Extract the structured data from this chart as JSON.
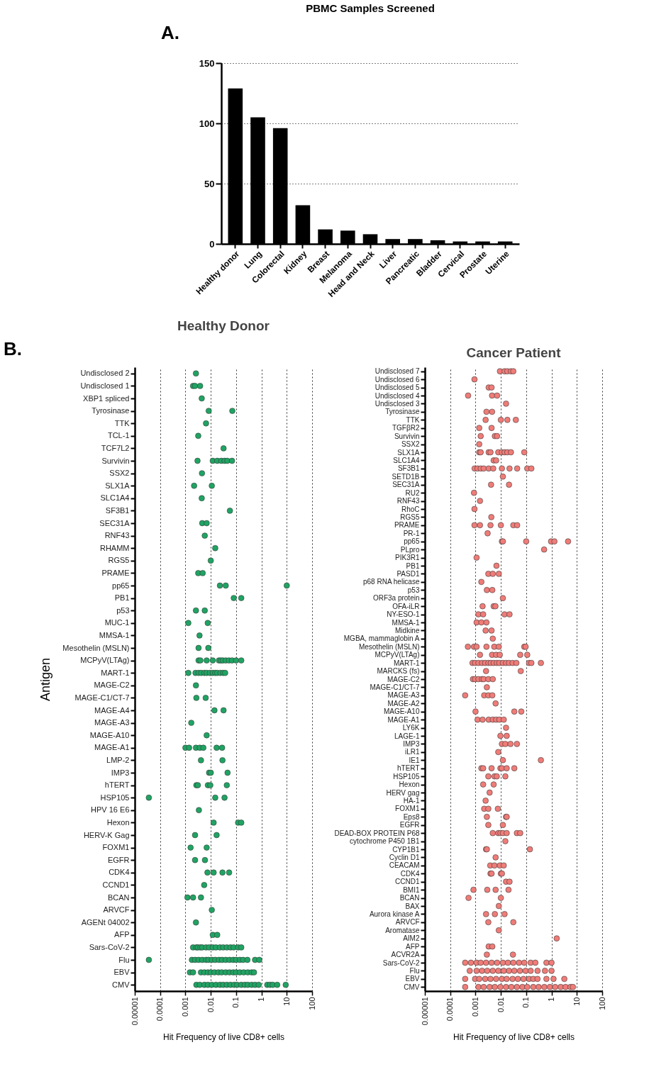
{
  "chart_data": [
    {
      "type": "bar",
      "title": "PBMC Samples Screened",
      "annotations": [
        "A."
      ],
      "categories": [
        "Healthy donor",
        "Lung",
        "Colorectal",
        "Kidney",
        "Breast",
        "Melanoma",
        "Head and Neck",
        "Liver",
        "Pancreatic",
        "Bladder",
        "Cervical",
        "Prostate",
        "Uterine"
      ],
      "values": [
        129,
        105,
        96,
        32,
        12,
        11,
        8,
        4,
        4,
        3,
        2,
        2,
        2
      ],
      "color": "#000000",
      "ylim": [
        0,
        150
      ],
      "yticks": [
        0,
        50,
        100,
        150
      ],
      "grid": "y"
    },
    {
      "type": "scatter",
      "orientation": "horizontal",
      "title": "Healthy Donor",
      "xlabel": "Hit Frequency of live CD8+ cells",
      "ylabel": "Antigen",
      "annotations": [
        "B."
      ],
      "categories": [
        "Undisclosed 2",
        "Undisclosed 1",
        "XBP1 spliced",
        "Tyrosinase",
        "TTK",
        "TCL-1",
        "TCF7L2",
        "Survivin",
        "SSX2",
        "SLX1A",
        "SLC1A4",
        "SF3B1",
        "SEC31A",
        "RNF43",
        "RHAMM",
        "RGS5",
        "PRAME",
        "pp65",
        "PB1",
        "p53",
        "MUC-1",
        "MMSA-1",
        "Mesothelin (MSLN)",
        "MCPyV(LTAg)",
        "MART-1",
        "MAGE-C2",
        "MAGE-C1/CT-7",
        "MAGE-A4",
        "MAGE-A3",
        "MAGE-A10",
        "MAGE-A1",
        "LMP-2",
        "IMP3",
        "hTERT",
        "HSP105",
        "HPV 16 E6",
        "Hexon",
        "HERV-K Gag",
        "FOXM1",
        "EGFR",
        "CDK4",
        "CCND1",
        "BCAN",
        "ARVCF",
        "AGENt 04002",
        "AFP",
        "Sars-CoV-2",
        "Flu",
        "EBV",
        "CMV"
      ],
      "log": "x",
      "xlim": [
        1e-05,
        100
      ],
      "xticks": [
        {
          "value": 1e-05,
          "label": "0.00001"
        },
        0.0001,
        0.001,
        0.01,
        0.1,
        1,
        10,
        100
      ],
      "grid": "x",
      "marker": "circle",
      "series": [
        {
          "color": "#1fa463",
          "x": [
            "Undisclosed 2",
            "Undisclosed 1",
            "Undisclosed 1",
            "Undisclosed 1",
            "XBP1 spliced",
            "Tyrosinase",
            "Tyrosinase",
            "TTK",
            "TCL-1",
            "TCF7L2",
            "Survivin",
            "Survivin",
            "Survivin",
            "Survivin",
            "Survivin",
            "Survivin",
            "Survivin",
            "SSX2",
            "SLX1A",
            "SLX1A",
            "SLC1A4",
            "SF3B1",
            "SEC31A",
            "SEC31A",
            "RNF43",
            "RHAMM",
            "RGS5",
            "PRAME",
            "PRAME",
            "pp65",
            "pp65",
            "pp65",
            "PB1",
            "PB1",
            "p53",
            "p53",
            "MUC-1",
            "MUC-1",
            "MMSA-1",
            "Mesothelin (MSLN)",
            "Mesothelin (MSLN)",
            "MCPyV(LTAg)",
            "MCPyV(LTAg)",
            "MCPyV(LTAg)",
            "MCPyV(LTAg)",
            "MCPyV(LTAg)",
            "MCPyV(LTAg)",
            "MCPyV(LTAg)",
            "MCPyV(LTAg)",
            "MCPyV(LTAg)",
            "MCPyV(LTAg)",
            "MCPyV(LTAg)",
            "MCPyV(LTAg)",
            "MART-1",
            "MART-1",
            "MART-1",
            "MART-1",
            "MART-1",
            "MART-1",
            "MART-1",
            "MART-1",
            "MART-1",
            "MART-1",
            "MART-1",
            "MART-1",
            "MART-1",
            "MAGE-C2",
            "MAGE-C1/CT-7",
            "MAGE-C1/CT-7",
            "MAGE-A4",
            "MAGE-A4",
            "MAGE-A3",
            "MAGE-A10",
            "MAGE-A1",
            "MAGE-A1",
            "MAGE-A1",
            "MAGE-A1",
            "MAGE-A1",
            "MAGE-A1",
            "MAGE-A1",
            "LMP-2",
            "LMP-2",
            "IMP3",
            "IMP3",
            "IMP3",
            "hTERT",
            "hTERT",
            "hTERT",
            "hTERT",
            "hTERT",
            "HSP105",
            "HSP105",
            "HSP105",
            "HPV 16 E6",
            "Hexon",
            "Hexon",
            "Hexon",
            "HERV-K Gag",
            "HERV-K Gag",
            "FOXM1",
            "FOXM1",
            "EGFR",
            "EGFR",
            "CDK4",
            "CDK4",
            "CDK4",
            "CDK4",
            "CCND1",
            "BCAN",
            "BCAN",
            "BCAN",
            "ARVCF",
            "AGENt 04002",
            "AFP",
            "AFP",
            "Sars-CoV-2",
            "Sars-CoV-2",
            "Sars-CoV-2",
            "Sars-CoV-2",
            "Sars-CoV-2",
            "Sars-CoV-2",
            "Sars-CoV-2",
            "Sars-CoV-2",
            "Sars-CoV-2",
            "Sars-CoV-2",
            "Sars-CoV-2",
            "Sars-CoV-2",
            "Sars-CoV-2",
            "Sars-CoV-2",
            "Sars-CoV-2",
            "Sars-CoV-2",
            "Flu",
            "Flu",
            "Flu",
            "Flu",
            "Flu",
            "Flu",
            "Flu",
            "Flu",
            "Flu",
            "Flu",
            "Flu",
            "Flu",
            "Flu",
            "Flu",
            "Flu",
            "Flu",
            "Flu",
            "Flu",
            "Flu",
            "Flu",
            "EBV",
            "EBV",
            "EBV",
            "EBV",
            "EBV",
            "EBV",
            "EBV",
            "EBV",
            "EBV",
            "EBV",
            "EBV",
            "EBV",
            "EBV",
            "EBV",
            "EBV",
            "EBV",
            "EBV",
            "EBV",
            "CMV",
            "CMV",
            "CMV",
            "CMV",
            "CMV",
            "CMV",
            "CMV",
            "CMV",
            "CMV",
            "CMV",
            "CMV",
            "CMV",
            "CMV",
            "CMV",
            "CMV",
            "CMV",
            "CMV",
            "CMV",
            "CMV",
            "CMV",
            "CMV",
            "CMV",
            "CMV"
          ],
          "values": [
            0.0026,
            0.002,
            0.0024,
            0.0038,
            0.0044,
            0.0083,
            0.071,
            0.0065,
            0.0032,
            0.032,
            0.003,
            0.012,
            0.018,
            0.026,
            0.035,
            0.045,
            0.069,
            0.0045,
            0.0022,
            0.011,
            0.0044,
            0.057,
            0.0046,
            0.0069,
            0.0058,
            0.015,
            0.01,
            0.0032,
            0.0048,
            0.023,
            0.039,
            10,
            0.081,
            0.16,
            0.0026,
            0.0058,
            0.0013,
            0.0076,
            0.0036,
            0.0033,
            0.008,
            0.0033,
            0.0039,
            0.0069,
            0.012,
            0.021,
            0.025,
            0.03,
            0.039,
            0.052,
            0.069,
            0.1,
            0.16,
            0.0013,
            0.0025,
            0.0033,
            0.0042,
            0.0056,
            0.0069,
            0.0092,
            0.012,
            0.015,
            0.018,
            0.024,
            0.031,
            0.037,
            0.0026,
            0.0027,
            0.0063,
            0.014,
            0.032,
            0.0017,
            0.0069,
            0.001,
            0.0014,
            0.0026,
            0.0037,
            0.0051,
            0.017,
            0.028,
            0.0041,
            0.029,
            0.0086,
            0.01,
            0.046,
            0.0027,
            0.0031,
            0.0077,
            0.0096,
            0.043,
            3.6e-05,
            0.015,
            0.035,
            0.0034,
            0.013,
            0.12,
            0.16,
            0.0024,
            0.017,
            0.0016,
            0.0069,
            0.0024,
            0.0059,
            0.0074,
            0.013,
            0.029,
            0.053,
            0.0055,
            0.0012,
            0.002,
            0.0041,
            0.011,
            0.0026,
            0.012,
            0.018,
            0.002,
            0.0027,
            0.0031,
            0.0039,
            0.0046,
            0.0065,
            0.0086,
            0.012,
            0.016,
            0.023,
            0.031,
            0.043,
            0.06,
            0.08,
            0.12,
            0.16,
            3.6e-05,
            0.0018,
            0.0024,
            0.0033,
            0.0046,
            0.0065,
            0.0081,
            0.011,
            0.015,
            0.021,
            0.028,
            0.039,
            0.055,
            0.077,
            0.1,
            0.14,
            0.19,
            0.28,
            0.56,
            0.82,
            0.0015,
            0.002,
            0.0041,
            0.0056,
            0.0077,
            0.01,
            0.014,
            0.02,
            0.027,
            0.039,
            0.055,
            0.077,
            0.1,
            0.14,
            0.2,
            0.29,
            0.41,
            0.51,
            0.0027,
            0.0037,
            0.0056,
            0.0077,
            0.011,
            0.016,
            0.023,
            0.031,
            0.043,
            0.06,
            0.084,
            0.11,
            0.16,
            0.22,
            0.29,
            0.41,
            0.56,
            0.78,
            1.7,
            2.2,
            2.8,
            4.2,
            9.1
          ]
        }
      ]
    },
    {
      "type": "scatter",
      "orientation": "horizontal",
      "title": "Cancer Patient",
      "xlabel": "Hit Frequency of live CD8+ cells",
      "categories": [
        "Undisclosed 7",
        "Undisclosed 6",
        "Undisclosed 5",
        "Undisclosed 4",
        "Undisclosed 3",
        "Tyrosinase",
        "TTK",
        "TGFβR2",
        "Survivin",
        "SSX2",
        "SLX1A",
        "SLC1A4",
        "SF3B1",
        "SETD1B",
        "SEC31A",
        "RU2",
        "RNF43",
        "RhoC",
        "RGS5",
        "PRAME",
        "PR-1",
        "pp65",
        "PLpro",
        "PIK3R1",
        "PB1",
        "PASD1",
        "p68 RNA helicase",
        "p53",
        "ORF3a protein",
        "OFA-iLR",
        "NY-ESO-1",
        "MMSA-1",
        "Midkine",
        "MGBA, mammaglobin A",
        "Mesothelin (MSLN)",
        "MCPyV(LTAg)",
        "MART-1",
        "MARCKS (fs)",
        "MAGE-C2",
        "MAGE-C1/CT-7",
        "MAGE-A3",
        "MAGE-A2",
        "MAGE-A10",
        "MAGE-A1",
        "LY6K",
        "LAGE-1",
        "IMP3",
        "iLR1",
        "IE1",
        "hTERT",
        "HSP105",
        "Hexon",
        "HERV gag",
        "HA-1",
        "FOXM1",
        "Eps8",
        "EGFR",
        "DEAD-BOX PROTEIN P68",
        "cytochrome P450 1B1",
        "CYP1B1",
        "Cyclin D1",
        "CEACAM",
        "CDK4",
        "CCND1",
        "BMI1",
        "BCAN",
        "BAX",
        "Aurora kinase A",
        "ARVCF",
        "Aromatase",
        "AIM2",
        "AFP",
        "ACVR2A",
        "Sars-CoV-2",
        "Flu",
        "EBV",
        "CMV"
      ],
      "log": "x",
      "xlim": [
        1e-05,
        100
      ],
      "xticks": [
        {
          "value": 1e-05,
          "label": "0.00001"
        },
        0.0001,
        0.001,
        0.01,
        0.1,
        1,
        10,
        100
      ],
      "grid": "x",
      "marker": "circle",
      "series": [
        {
          "color": "#f07c78",
          "x": [
            "Undisclosed 7",
            "Undisclosed 7",
            "Undisclosed 7",
            "Undisclosed 7",
            "Undisclosed 7",
            "Undisclosed 6",
            "Undisclosed 5",
            "Undisclosed 5",
            "Undisclosed 4",
            "Undisclosed 4",
            "Undisclosed 4",
            "Undisclosed 3",
            "Tyrosinase",
            "Tyrosinase",
            "TTK",
            "TTK",
            "TTK",
            "TTK",
            "TGFβR2",
            "TGFβR2",
            "Survivin",
            "Survivin",
            "Survivin",
            "SSX2",
            "SLX1A",
            "SLX1A",
            "SLX1A",
            "SLX1A",
            "SLX1A",
            "SLX1A",
            "SLX1A",
            "SLX1A",
            "SLX1A",
            "SLX1A",
            "SLC1A4",
            "SLC1A4",
            "SF3B1",
            "SF3B1",
            "SF3B1",
            "SF3B1",
            "SF3B1",
            "SF3B1",
            "SF3B1",
            "SF3B1",
            "SF3B1",
            "SF3B1",
            "SF3B1",
            "SETD1B",
            "SEC31A",
            "SEC31A",
            "RU2",
            "RNF43",
            "RhoC",
            "RGS5",
            "PRAME",
            "PRAME",
            "PRAME",
            "PRAME",
            "PRAME",
            "PRAME",
            "PR-1",
            "pp65",
            "pp65",
            "pp65",
            "pp65",
            "pp65",
            "pp65",
            "PLpro",
            "PIK3R1",
            "PB1",
            "PASD1",
            "PASD1",
            "PASD1",
            "p68 RNA helicase",
            "p53",
            "p53",
            "ORF3a protein",
            "OFA-iLR",
            "OFA-iLR",
            "OFA-iLR",
            "NY-ESO-1",
            "NY-ESO-1",
            "NY-ESO-1",
            "NY-ESO-1",
            "MMSA-1",
            "MMSA-1",
            "MMSA-1",
            "Midkine",
            "Midkine",
            "MGBA, mammaglobin A",
            "Mesothelin (MSLN)",
            "Mesothelin (MSLN)",
            "Mesothelin (MSLN)",
            "Mesothelin (MSLN)",
            "Mesothelin (MSLN)",
            "Mesothelin (MSLN)",
            "Mesothelin (MSLN)",
            "Mesothelin (MSLN)",
            "MCPyV(LTAg)",
            "MCPyV(LTAg)",
            "MCPyV(LTAg)",
            "MCPyV(LTAg)",
            "MCPyV(LTAg)",
            "MCPyV(LTAg)",
            "MART-1",
            "MART-1",
            "MART-1",
            "MART-1",
            "MART-1",
            "MART-1",
            "MART-1",
            "MART-1",
            "MART-1",
            "MART-1",
            "MART-1",
            "MART-1",
            "MART-1",
            "MART-1",
            "MART-1",
            "MART-1",
            "MART-1",
            "MART-1",
            "MARCKS (fs)",
            "MARCKS (fs)",
            "MAGE-C2",
            "MAGE-C2",
            "MAGE-C2",
            "MAGE-C2",
            "MAGE-C2",
            "MAGE-C2",
            "MAGE-C2",
            "MAGE-C1/CT-7",
            "MAGE-A3",
            "MAGE-A3",
            "MAGE-A3",
            "MAGE-A3",
            "MAGE-A2",
            "MAGE-A10",
            "MAGE-A10",
            "MAGE-A10",
            "MAGE-A1",
            "MAGE-A1",
            "MAGE-A1",
            "MAGE-A1",
            "MAGE-A1",
            "MAGE-A1",
            "MAGE-A1",
            "LY6K",
            "LAGE-1",
            "LAGE-1",
            "IMP3",
            "IMP3",
            "IMP3",
            "IMP3",
            "iLR1",
            "IE1",
            "IE1",
            "hTERT",
            "hTERT",
            "hTERT",
            "hTERT",
            "hTERT",
            "hTERT",
            "hTERT",
            "HSP105",
            "HSP105",
            "HSP105",
            "HSP105",
            "Hexon",
            "Hexon",
            "HERV gag",
            "HA-1",
            "FOXM1",
            "FOXM1",
            "FOXM1",
            "Eps8",
            "Eps8",
            "Eps8",
            "EGFR",
            "EGFR",
            "DEAD-BOX PROTEIN P68",
            "DEAD-BOX PROTEIN P68",
            "DEAD-BOX PROTEIN P68",
            "DEAD-BOX PROTEIN P68",
            "DEAD-BOX PROTEIN P68",
            "DEAD-BOX PROTEIN P68",
            "DEAD-BOX PROTEIN P68",
            "cytochrome P450 1B1",
            "CYP1B1",
            "CYP1B1",
            "CYP1B1",
            "Cyclin D1",
            "CEACAM",
            "CEACAM",
            "CEACAM",
            "CEACAM",
            "CDK4",
            "CDK4",
            "CDK4",
            "CDK4",
            "CCND1",
            "CCND1",
            "BMI1",
            "BMI1",
            "BMI1",
            "BMI1",
            "BCAN",
            "BCAN",
            "BAX",
            "Aurora kinase A",
            "Aurora kinase A",
            "Aurora kinase A",
            "ARVCF",
            "ARVCF",
            "Aromatase",
            "AIM2",
            "AFP",
            "AFP",
            "ACVR2A",
            "ACVR2A",
            "Sars-CoV-2",
            "Sars-CoV-2",
            "Sars-CoV-2",
            "Sars-CoV-2",
            "Sars-CoV-2",
            "Sars-CoV-2",
            "Sars-CoV-2",
            "Sars-CoV-2",
            "Sars-CoV-2",
            "Sars-CoV-2",
            "Sars-CoV-2",
            "Sars-CoV-2",
            "Sars-CoV-2",
            "Sars-CoV-2",
            "Sars-CoV-2",
            "Sars-CoV-2",
            "Flu",
            "Flu",
            "Flu",
            "Flu",
            "Flu",
            "Flu",
            "Flu",
            "Flu",
            "Flu",
            "Flu",
            "Flu",
            "Flu",
            "Flu",
            "Flu",
            "Flu",
            "EBV",
            "EBV",
            "EBV",
            "EBV",
            "EBV",
            "EBV",
            "EBV",
            "EBV",
            "EBV",
            "EBV",
            "EBV",
            "EBV",
            "EBV",
            "EBV",
            "EBV",
            "EBV",
            "EBV",
            "CMV",
            "CMV",
            "CMV",
            "CMV",
            "CMV",
            "CMV",
            "CMV",
            "CMV",
            "CMV",
            "CMV",
            "CMV",
            "CMV",
            "CMV",
            "CMV",
            "CMV",
            "CMV",
            "CMV",
            "CMV",
            "CMV",
            "CMV"
          ],
          "values": [
            0.0092,
            0.014,
            0.018,
            0.025,
            0.031,
            0.00091,
            0.0033,
            0.0043,
            0.00051,
            0.0045,
            0.0071,
            0.016,
            0.0027,
            0.0045,
            0.0025,
            0.01,
            0.018,
            0.039,
            0.0014,
            0.0043,
            0.0016,
            0.0058,
            0.0071,
            0.0014,
            0.0014,
            0.0016,
            0.0033,
            0.0039,
            0.0079,
            0.011,
            0.014,
            0.018,
            0.025,
            0.084,
            0.0052,
            0.0065,
            0.00092,
            0.0012,
            0.0016,
            0.0021,
            0.0033,
            0.005,
            0.011,
            0.022,
            0.044,
            0.11,
            0.16,
            0.012,
            0.0041,
            0.021,
            0.00087,
            0.0015,
            0.00091,
            0.0042,
            0.00091,
            0.0015,
            0.0039,
            0.01,
            0.031,
            0.044,
            0.003,
            0.011,
            0.012,
            0.1,
            0.96,
            1.3,
            4.5,
            0.51,
            0.0011,
            0.0067,
            0.0032,
            0.0048,
            0.0083,
            0.0017,
            0.0028,
            0.0046,
            0.012,
            0.0019,
            0.0052,
            0.0061,
            0.0013,
            0.002,
            0.014,
            0.022,
            0.0011,
            0.0017,
            0.0027,
            0.0025,
            0.0043,
            0.0048,
            0.0005,
            0.00087,
            0.0011,
            0.0027,
            0.0055,
            0.0083,
            0.084,
            0.095,
            0.0015,
            0.0045,
            0.0065,
            0.0091,
            0.058,
            0.11,
            0.00076,
            0.00096,
            0.0013,
            0.0018,
            0.0024,
            0.0032,
            0.004,
            0.0052,
            0.0069,
            0.0087,
            0.012,
            0.016,
            0.021,
            0.029,
            0.041,
            0.13,
            0.16,
            0.38,
            0.0026,
            0.061,
            0.00079,
            0.00096,
            0.0013,
            0.0018,
            0.0021,
            0.0032,
            0.0048,
            0.0028,
            0.00039,
            0.0022,
            0.0032,
            0.0046,
            0.0062,
            0.001,
            0.034,
            0.064,
            0.0012,
            0.0019,
            0.0033,
            0.0048,
            0.0065,
            0.0087,
            0.013,
            0.016,
            0.0096,
            0.017,
            0.011,
            0.015,
            0.024,
            0.043,
            0.0079,
            0.012,
            0.38,
            0.0017,
            0.002,
            0.0043,
            0.0096,
            0.011,
            0.017,
            0.034,
            0.0032,
            0.0056,
            0.0069,
            0.015,
            0.002,
            0.0052,
            0.0036,
            0.0025,
            0.0022,
            0.0032,
            0.0076,
            0.0028,
            0.016,
            0.017,
            0.0032,
            0.012,
            0.0048,
            0.0079,
            0.0096,
            0.012,
            0.017,
            0.043,
            0.058,
            0.015,
            0.0026,
            0.0028,
            0.14,
            0.0062,
            0.0038,
            0.0056,
            0.0091,
            0.013,
            0.0039,
            0.0043,
            0.01,
            0.011,
            0.016,
            0.022,
            0.00083,
            0.0029,
            0.0062,
            0.02,
            0.00053,
            0.01,
            0.0083,
            0.0026,
            0.0058,
            0.014,
            0.0032,
            0.031,
            0.0083,
            1.6,
            0.0033,
            0.0046,
            0.0028,
            0.03,
            0.00039,
            0.00066,
            0.0011,
            0.0016,
            0.0026,
            0.0043,
            0.0071,
            0.012,
            0.019,
            0.031,
            0.052,
            0.084,
            0.15,
            0.23,
            0.63,
            1.0,
            0.00059,
            0.0011,
            0.0018,
            0.0029,
            0.0048,
            0.0079,
            0.013,
            0.021,
            0.034,
            0.057,
            0.095,
            0.15,
            0.28,
            0.55,
            1.0,
            0.00039,
            0.00096,
            0.0014,
            0.0024,
            0.0039,
            0.0065,
            0.011,
            0.017,
            0.029,
            0.047,
            0.078,
            0.13,
            0.19,
            0.28,
            0.63,
            1.2,
            3.2,
            0.00039,
            0.0013,
            0.0021,
            0.0036,
            0.0058,
            0.0096,
            0.016,
            0.026,
            0.043,
            0.071,
            0.11,
            0.19,
            0.31,
            0.52,
            0.86,
            1.4,
            2.3,
            3.6,
            5.6,
            7.0
          ]
        }
      ]
    }
  ]
}
